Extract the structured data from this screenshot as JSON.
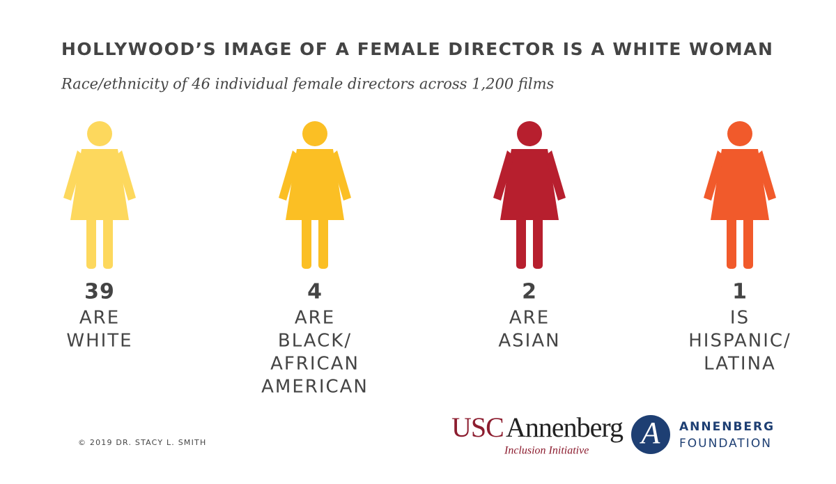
{
  "header": {
    "title": "HOLLYWOOD’S IMAGE OF A FEMALE DIRECTOR IS A WHITE WOMAN",
    "subtitle": "Race/ethnicity of 46 individual female directors across 1,200 films"
  },
  "items": [
    {
      "count": "39",
      "lines": [
        "ARE",
        "WHITE"
      ],
      "color": "#fdd85d"
    },
    {
      "count": "4",
      "lines": [
        "ARE",
        "BLACK/",
        "AFRICAN",
        "AMERICAN"
      ],
      "color": "#fbbf24"
    },
    {
      "count": "2",
      "lines": [
        "ARE",
        "ASIAN"
      ],
      "color": "#b71f2e"
    },
    {
      "count": "1",
      "lines": [
        "IS",
        "HISPANIC/",
        "LATINA"
      ],
      "color": "#f15a2b"
    }
  ],
  "footer": {
    "copyright": "© 2019 DR. STACY L. SMITH",
    "usc_logo": {
      "usc": "USC",
      "annenberg": "Annenberg",
      "initiative": "Inclusion Initiative"
    },
    "foundation_logo": {
      "letter": "A",
      "line1": "ANNENBERG",
      "line2": "FOUNDATION"
    }
  }
}
